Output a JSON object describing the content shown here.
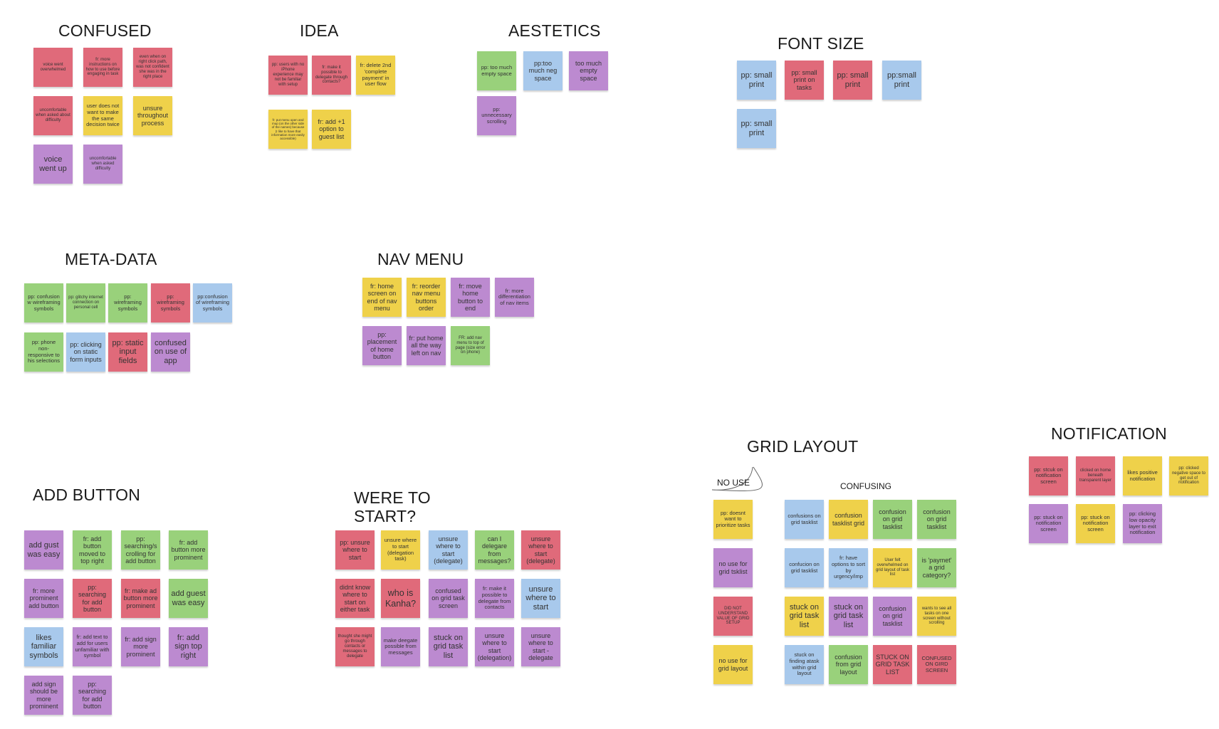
{
  "colors": {
    "red": "#e06a7a",
    "yellow": "#efd14a",
    "green": "#99d17b",
    "blue": "#a8c9ec",
    "purple": "#bc8ad0"
  },
  "clusters": {
    "confused": {
      "title": "CONFUSED",
      "notes": [
        {
          "text": "voice went overwhelmed",
          "color": "red"
        },
        {
          "text": "fr: more instructions on how to use before engaging in task",
          "color": "red"
        },
        {
          "text": "even when on right click path, was not confident she was in the right place",
          "color": "red"
        },
        {
          "text": "uncomfortable when asked about difficulty",
          "color": "red"
        },
        {
          "text": "user does not want to make the same decision twice",
          "color": "yellow"
        },
        {
          "text": "unsure throughout process",
          "color": "yellow"
        },
        {
          "text": "voice went up",
          "color": "purple"
        },
        {
          "text": "uncomfortable when asked difficulty",
          "color": "purple"
        }
      ]
    },
    "idea": {
      "title": "IDEA",
      "notes": [
        {
          "text": "pp: users with no iPhone experience may not be familiar with setup",
          "color": "red"
        },
        {
          "text": "fr: make it possible to delegate through contacts?",
          "color": "red"
        },
        {
          "text": "fr: delete 2nd 'complete payment' in user flow",
          "color": "yellow"
        },
        {
          "text": "fr: put menu open and mup (on the other side of the names) because (I like to have that information more easily accessible)",
          "color": "yellow"
        },
        {
          "text": "fr: add +1 option to guest list",
          "color": "yellow"
        }
      ]
    },
    "aestetics": {
      "title": "AESTETICS",
      "notes": [
        {
          "text": "pp: too much empty space",
          "color": "green"
        },
        {
          "text": "pp:too much neg space",
          "color": "blue"
        },
        {
          "text": "too much empty space",
          "color": "purple"
        },
        {
          "text": "pp: unnecessary scrolling",
          "color": "purple"
        }
      ]
    },
    "font_size": {
      "title": "FONT SIZE",
      "notes": [
        {
          "text": "pp: small print",
          "color": "blue"
        },
        {
          "text": "pp: small print on tasks",
          "color": "red"
        },
        {
          "text": "pp: small print",
          "color": "red"
        },
        {
          "text": "pp:small print",
          "color": "blue"
        },
        {
          "text": "pp: small print",
          "color": "blue"
        }
      ]
    },
    "meta_data": {
      "title": "META-DATA",
      "notes": [
        {
          "text": "pp: confusion w wireframing symbols",
          "color": "green"
        },
        {
          "text": "pp: glitchy internet connection on personal cell",
          "color": "green"
        },
        {
          "text": "pp: wireframing symbols",
          "color": "green"
        },
        {
          "text": "pp: wireframing symbols",
          "color": "red"
        },
        {
          "text": "pp:confusion of wireframing symbols",
          "color": "blue"
        },
        {
          "text": "pp: phone non-responsive to his selections",
          "color": "green"
        },
        {
          "text": "pp: clicking on static form inputs",
          "color": "blue"
        },
        {
          "text": "pp: static input fields",
          "color": "red"
        },
        {
          "text": "confused on use of app",
          "color": "purple"
        }
      ]
    },
    "nav_menu": {
      "title": "NAV MENU",
      "notes": [
        {
          "text": "fr: home screen on end of nav menu",
          "color": "yellow"
        },
        {
          "text": "fr: reorder nav menu buttons order",
          "color": "yellow"
        },
        {
          "text": "fr: move home button to end",
          "color": "purple"
        },
        {
          "text": "fr: more differentiation of nav items",
          "color": "purple"
        },
        {
          "text": "pp: placement of home button",
          "color": "purple"
        },
        {
          "text": "fr: put home all the way left on nav",
          "color": "purple"
        },
        {
          "text": "FR: add nav menu to top of page (size error on phone)",
          "color": "green"
        }
      ]
    },
    "add_button": {
      "title": "ADD BUTTON",
      "notes": [
        {
          "text": "add gust was easy",
          "color": "purple"
        },
        {
          "text": "fr: add button moved to top right",
          "color": "green"
        },
        {
          "text": "pp: searching/s crolling for add button",
          "color": "green"
        },
        {
          "text": "fr: add button more prominent",
          "color": "green"
        },
        {
          "text": "fr: more prominent add button",
          "color": "purple"
        },
        {
          "text": "pp: searching for add button",
          "color": "red"
        },
        {
          "text": "fr: make ad button more prominent",
          "color": "red"
        },
        {
          "text": "add guest was easy",
          "color": "green"
        },
        {
          "text": "likes familiar symbols",
          "color": "blue"
        },
        {
          "text": "fr: add text to add for users unfamiliar with symbol",
          "color": "purple"
        },
        {
          "text": "fr: add sign more prominent",
          "color": "purple"
        },
        {
          "text": "fr: add sign top right",
          "color": "purple"
        },
        {
          "text": "add sign should be more prominent",
          "color": "purple"
        },
        {
          "text": "pp: searching for add button",
          "color": "purple"
        }
      ]
    },
    "were_to_start": {
      "title_line1": "WERE TO",
      "title_line2": "START?",
      "notes": [
        {
          "text": "pp: unsure where to start",
          "color": "red"
        },
        {
          "text": "unsure where to start (delegation task)",
          "color": "yellow"
        },
        {
          "text": "unsure where to start (delegate)",
          "color": "blue"
        },
        {
          "text": "can I delegare from messages?",
          "color": "green"
        },
        {
          "text": "unsure where to start (delegate)",
          "color": "red"
        },
        {
          "text": "didnt know where to start on either task",
          "color": "red"
        },
        {
          "text": "who is Kanha?",
          "color": "red"
        },
        {
          "text": "confused on grid task screen",
          "color": "purple"
        },
        {
          "text": "fr: make it possible to delegate from contacts",
          "color": "purple"
        },
        {
          "text": "unsure where to start",
          "color": "blue"
        },
        {
          "text": "thought she might go through contacts or messages to delegate",
          "color": "red"
        },
        {
          "text": "make deegate possible from messages",
          "color": "purple"
        },
        {
          "text": "stuck on grid task list",
          "color": "purple"
        },
        {
          "text": "unsure where to start (delegation)",
          "color": "purple"
        },
        {
          "text": "unsure where to start - delegate",
          "color": "purple"
        }
      ]
    },
    "grid_layout": {
      "title": "GRID LAYOUT",
      "no_use_label": "NO USE",
      "confusing_label": "CONFUSING",
      "no_use_notes": [
        {
          "text": "pp: doesnt want to prioritize tasks",
          "color": "yellow"
        },
        {
          "text": "no use for grid tsklist",
          "color": "purple"
        },
        {
          "text": "DID NOT UNDERSTAND VALUE OF GRID SETUP",
          "color": "red"
        },
        {
          "text": "no use for grid layout",
          "color": "yellow"
        }
      ],
      "confusing_notes": [
        {
          "text": "confusions on grid tasklist",
          "color": "blue"
        },
        {
          "text": "confusion tasklist grid",
          "color": "yellow"
        },
        {
          "text": "confusion on grid tasklist",
          "color": "green"
        },
        {
          "text": "confusion on grid tasklist",
          "color": "green"
        },
        {
          "text": "confucion on grid tasklist",
          "color": "blue"
        },
        {
          "text": "fr: have options to sort by urgency/imp",
          "color": "blue"
        },
        {
          "text": "User felt overwhelmed on grid layout of task list",
          "color": "yellow"
        },
        {
          "text": "is 'paymet' a grid category?",
          "color": "green"
        },
        {
          "text": "stuck on grid task list",
          "color": "yellow"
        },
        {
          "text": "stuck on grid task list",
          "color": "purple"
        },
        {
          "text": "confusion on grid tasklist",
          "color": "purple"
        },
        {
          "text": "wants to see all tasks on one screen without scrolling",
          "color": "yellow"
        },
        {
          "text": "stuck on finding atask within grid layout",
          "color": "blue"
        },
        {
          "text": "confusion from grid layout",
          "color": "green"
        },
        {
          "text": "STUCK ON GRID TASK LIST",
          "color": "red"
        },
        {
          "text": "CONFUSED ON GIRD SCREEN",
          "color": "red"
        }
      ]
    },
    "notification": {
      "title": "NOTIFICATION",
      "notes": [
        {
          "text": "pp: stcuk on notification screen",
          "color": "red"
        },
        {
          "text": "clicked on home beneath transparent layer",
          "color": "red"
        },
        {
          "text": "likes positive notification",
          "color": "yellow"
        },
        {
          "text": "pp: clicked negative space to get out of notification",
          "color": "yellow"
        },
        {
          "text": "pp: stuck on notification screen",
          "color": "purple"
        },
        {
          "text": "pp: stuck on notification screen",
          "color": "yellow"
        },
        {
          "text": "pp: clicking low opacity layer to exit notification",
          "color": "purple"
        }
      ]
    }
  }
}
